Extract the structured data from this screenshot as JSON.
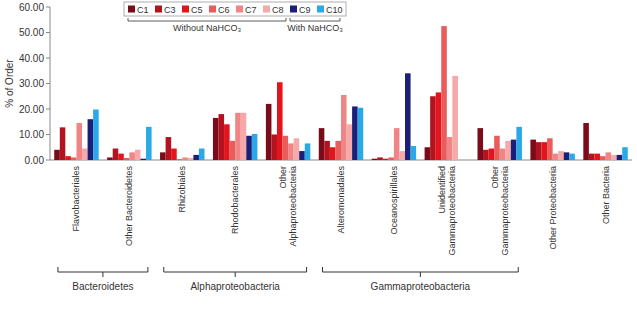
{
  "chart_data": {
    "type": "bar",
    "y_label": "% of Order",
    "categories": [
      "Flavobacteriales",
      "Other Bacteroidetes",
      "Rhizobiales",
      "Rhodobacterales",
      "Other Alphaproteobacteria",
      "Alteromonadales",
      "Oceanospirillales",
      "Unidentified Gammaproteobacteria",
      "Other Gammaproteobacteria",
      "Other Proteobacteria",
      "Other Bacteria"
    ],
    "series": [
      {
        "name": "C1",
        "color": "#7a0b18",
        "values": [
          4,
          1,
          3,
          16.5,
          22,
          12.5,
          0.5,
          5,
          12.5,
          8,
          14.5
        ]
      },
      {
        "name": "C3",
        "color": "#b3121f",
        "values": [
          12.8,
          4.5,
          9,
          18,
          10,
          7.5,
          1,
          25,
          4,
          7,
          2.5
        ]
      },
      {
        "name": "C5",
        "color": "#e3141c",
        "values": [
          1.5,
          2.5,
          4.5,
          14,
          30.5,
          5,
          0.5,
          26.5,
          4.5,
          7,
          2.5
        ]
      },
      {
        "name": "C6",
        "color": "#e85c5c",
        "values": [
          1,
          0.8,
          0.3,
          7.5,
          9.5,
          7.5,
          1,
          52.5,
          9.5,
          8.5,
          1.5
        ]
      },
      {
        "name": "C7",
        "color": "#f08585",
        "values": [
          14.5,
          3,
          1,
          18.5,
          6.5,
          25.5,
          12.5,
          9,
          4.5,
          2.5,
          3
        ]
      },
      {
        "name": "C8",
        "color": "#f5a9a9",
        "values": [
          4.5,
          4,
          0.8,
          18.5,
          8.5,
          14,
          3.5,
          33,
          7.5,
          3.5,
          2
        ]
      },
      {
        "name": "C9",
        "color": "#1b1f78",
        "values": [
          16,
          0.5,
          2,
          9.5,
          3.5,
          21,
          34,
          0,
          8,
          3,
          2
        ]
      },
      {
        "name": "C10",
        "color": "#2aa9e8",
        "values": [
          19.8,
          13,
          4.5,
          10.2,
          6.5,
          20.5,
          5.5,
          0,
          13,
          2.5,
          5
        ]
      }
    ],
    "legend": "top",
    "legend_groups": [
      {
        "label": "Without NaHCO₃",
        "series": [
          "C1",
          "C3",
          "C5",
          "C6",
          "C7",
          "C8"
        ]
      },
      {
        "label": "With NaHCO₃",
        "series": [
          "C9",
          "C10"
        ]
      }
    ],
    "groups": [
      {
        "label": "Bacteroidetes",
        "from": "Flavobacteriales",
        "to": "Other Bacteroidetes"
      },
      {
        "label": "Alphaproteobacteria",
        "from": "Rhizobiales",
        "to": "Other Alphaproteobacteria"
      },
      {
        "label": "Gammaproteobacteria",
        "from": "Alteromonadales",
        "to": "Other Gammaproteobacteria"
      }
    ],
    "ylim": [
      0,
      60
    ],
    "yticks": [
      {
        "value": 0,
        "label": "0.00"
      },
      {
        "value": 10,
        "label": "10.00"
      },
      {
        "value": 20,
        "label": "20.00"
      },
      {
        "value": 30,
        "label": "30.00"
      },
      {
        "value": 40,
        "label": "40.00"
      },
      {
        "value": 50,
        "label": "50.00"
      },
      {
        "value": 60,
        "label": "60.00"
      }
    ],
    "grid": false
  }
}
